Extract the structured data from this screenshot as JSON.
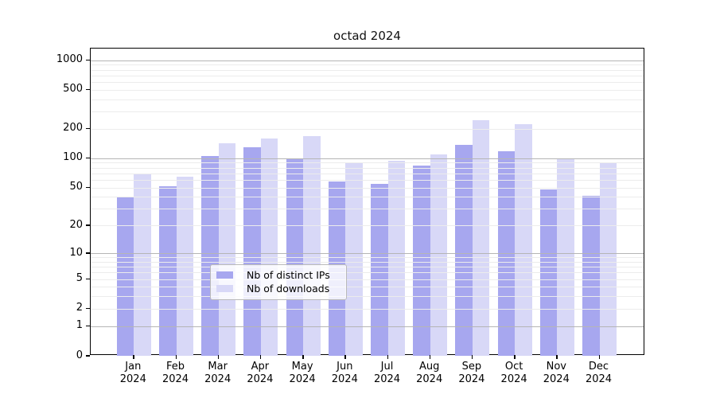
{
  "title": "octad 2024",
  "chart_data": {
    "type": "bar",
    "title": "octad 2024",
    "scale": "log10(1+y)",
    "grid": "on",
    "legend_position": "inside-bottom-center",
    "months": [
      "Jan",
      "Feb",
      "Mar",
      "Apr",
      "May",
      "Jun",
      "Jul",
      "Aug",
      "Sep",
      "Oct",
      "Nov",
      "Dec"
    ],
    "year": "2024",
    "categories": [
      "Jan 2024",
      "Feb 2024",
      "Mar 2024",
      "Apr 2024",
      "May 2024",
      "Jun 2024",
      "Jul 2024",
      "Aug 2024",
      "Sep 2024",
      "Oct 2024",
      "Nov 2024",
      "Dec 2024"
    ],
    "series": [
      {
        "name": "Nb of distinct IPs",
        "color": "#a7a7ef",
        "values": [
          40,
          52,
          106,
          130,
          97,
          58,
          55,
          84,
          137,
          118,
          48,
          41
        ]
      },
      {
        "name": "Nb of downloads",
        "color": "#d8d8f7",
        "values": [
          68,
          65,
          143,
          160,
          168,
          91,
          94,
          110,
          245,
          222,
          99,
          91
        ]
      }
    ],
    "y_ticks": [
      0,
      1,
      2,
      5,
      10,
      20,
      50,
      100,
      200,
      500,
      1000
    ],
    "y_grid_major": [
      1,
      10,
      100,
      1000
    ],
    "y_grid_minor": [
      2,
      3,
      4,
      5,
      6,
      7,
      8,
      9,
      20,
      30,
      40,
      50,
      60,
      70,
      80,
      90,
      200,
      300,
      400,
      500,
      600,
      700,
      800,
      900
    ],
    "ylim": [
      0,
      1100
    ],
    "colors": {
      "grid_major": "#b5b5b5",
      "grid_minor": "#ececec",
      "spine": "#000000",
      "text": "#000000"
    }
  }
}
